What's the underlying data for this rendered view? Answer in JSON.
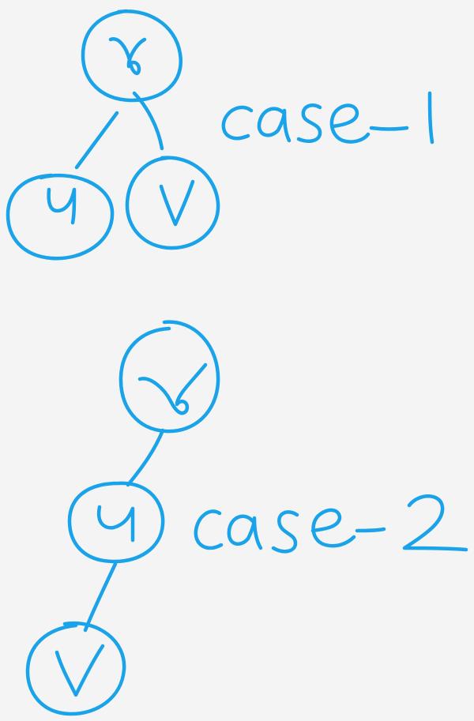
{
  "ink_color": "#1aa3e8",
  "background": "#f4f4f4",
  "case1": {
    "label": "case-1",
    "nodes": [
      {
        "id": "r",
        "label": "γ"
      },
      {
        "id": "u",
        "label": "u"
      },
      {
        "id": "v",
        "label": "v"
      }
    ],
    "edges": [
      {
        "from": "r",
        "to": "u"
      },
      {
        "from": "r",
        "to": "v"
      }
    ]
  },
  "case2": {
    "label": "case-2",
    "nodes": [
      {
        "id": "r",
        "label": "γ"
      },
      {
        "id": "u",
        "label": "u"
      },
      {
        "id": "v",
        "label": "v"
      }
    ],
    "edges": [
      {
        "from": "r",
        "to": "u"
      },
      {
        "from": "u",
        "to": "v"
      }
    ]
  }
}
